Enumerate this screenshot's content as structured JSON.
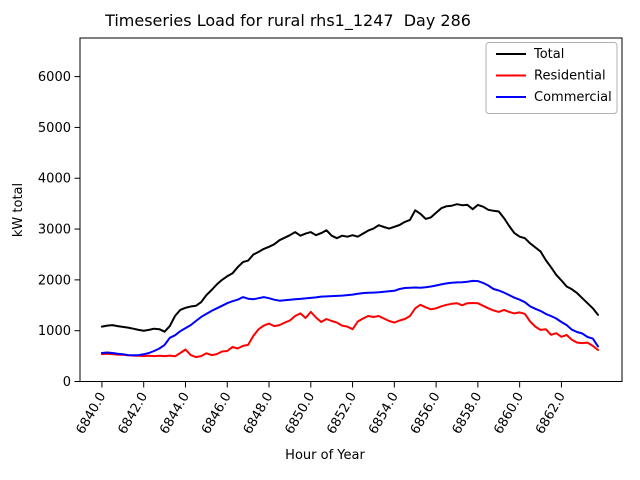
{
  "chart_data": {
    "type": "line",
    "title": "Timeseries Load for rural rhs1_1247  Day 286",
    "xlabel": "Hour of Year",
    "ylabel": "kW total",
    "grid": false,
    "xlim": [
      6838.95,
      6864.9
    ],
    "ylim": [
      0,
      6760
    ],
    "x_ticks": [
      {
        "value": 6840,
        "label": "6840.0"
      },
      {
        "value": 6842,
        "label": "6842.0"
      },
      {
        "value": 6844,
        "label": "6844.0"
      },
      {
        "value": 6846,
        "label": "6846.0"
      },
      {
        "value": 6848,
        "label": "6848.0"
      },
      {
        "value": 6850,
        "label": "6850.0"
      },
      {
        "value": 6852,
        "label": "6852.0"
      },
      {
        "value": 6854,
        "label": "6854.0"
      },
      {
        "value": 6856,
        "label": "6856.0"
      },
      {
        "value": 6858,
        "label": "6858.0"
      },
      {
        "value": 6860,
        "label": "6860.0"
      },
      {
        "value": 6862,
        "label": "6862.0"
      }
    ],
    "x_tick_rotation_deg": 60,
    "y_ticks": [
      {
        "value": 0,
        "label": "0"
      },
      {
        "value": 1000,
        "label": "1000"
      },
      {
        "value": 2000,
        "label": "2000"
      },
      {
        "value": 3000,
        "label": "3000"
      },
      {
        "value": 4000,
        "label": "4000"
      },
      {
        "value": 5000,
        "label": "5000"
      },
      {
        "value": 6000,
        "label": "6000"
      }
    ],
    "legend": {
      "position": "upper right",
      "entries": [
        "Total",
        "Residential",
        "Commercial"
      ]
    },
    "x_start": 6840.0,
    "x_step": 0.25,
    "x": [
      6840.0,
      6840.25,
      6840.5,
      6840.75,
      6841.0,
      6841.25,
      6841.5,
      6841.75,
      6842.0,
      6842.25,
      6842.5,
      6842.75,
      6843.0,
      6843.25,
      6843.5,
      6843.75,
      6844.0,
      6844.25,
      6844.5,
      6844.75,
      6845.0,
      6845.25,
      6845.5,
      6845.75,
      6846.0,
      6846.25,
      6846.5,
      6846.75,
      6847.0,
      6847.25,
      6847.5,
      6847.75,
      6848.0,
      6848.25,
      6848.5,
      6848.75,
      6849.0,
      6849.25,
      6849.5,
      6849.75,
      6850.0,
      6850.25,
      6850.5,
      6850.75,
      6851.0,
      6851.25,
      6851.5,
      6851.75,
      6852.0,
      6852.25,
      6852.5,
      6852.75,
      6853.0,
      6853.25,
      6853.5,
      6853.75,
      6854.0,
      6854.25,
      6854.5,
      6854.75,
      6855.0,
      6855.25,
      6855.5,
      6855.75,
      6856.0,
      6856.25,
      6856.5,
      6856.75,
      6857.0,
      6857.25,
      6857.5,
      6857.75,
      6858.0,
      6858.25,
      6858.5,
      6858.75,
      6859.0,
      6859.25,
      6859.5,
      6859.75,
      6860.0,
      6860.25,
      6860.5,
      6860.75,
      6861.0,
      6861.25,
      6861.5,
      6861.75,
      6862.0,
      6862.25,
      6862.5,
      6862.75,
      6863.0,
      6863.25,
      6863.5,
      6863.75
    ],
    "series": [
      {
        "name": "Total",
        "color": "#000000",
        "values": [
          1080,
          1100,
          1110,
          1090,
          1075,
          1060,
          1040,
          1015,
          1000,
          1015,
          1040,
          1030,
          980,
          1090,
          1290,
          1410,
          1450,
          1475,
          1490,
          1560,
          1700,
          1800,
          1910,
          2000,
          2070,
          2130,
          2250,
          2350,
          2380,
          2500,
          2550,
          2610,
          2650,
          2700,
          2780,
          2830,
          2880,
          2940,
          2870,
          2910,
          2940,
          2880,
          2920,
          2975,
          2870,
          2820,
          2870,
          2850,
          2880,
          2850,
          2910,
          2970,
          3010,
          3075,
          3040,
          3010,
          3045,
          3080,
          3140,
          3180,
          3370,
          3300,
          3200,
          3230,
          3320,
          3410,
          3450,
          3460,
          3490,
          3470,
          3475,
          3390,
          3475,
          3440,
          3380,
          3360,
          3345,
          3215,
          3060,
          2920,
          2850,
          2820,
          2720,
          2640,
          2560,
          2390,
          2250,
          2100,
          1990,
          1870,
          1815,
          1740,
          1640,
          1540,
          1440,
          1310
        ]
      },
      {
        "name": "Residential",
        "color": "#ff0000",
        "values": [
          540,
          545,
          540,
          530,
          525,
          515,
          510,
          505,
          500,
          505,
          500,
          505,
          500,
          510,
          495,
          560,
          630,
          520,
          480,
          500,
          555,
          520,
          540,
          590,
          600,
          680,
          650,
          700,
          720,
          900,
          1030,
          1100,
          1140,
          1090,
          1110,
          1160,
          1200,
          1290,
          1340,
          1250,
          1370,
          1260,
          1170,
          1230,
          1190,
          1160,
          1100,
          1080,
          1030,
          1180,
          1240,
          1290,
          1270,
          1290,
          1240,
          1190,
          1160,
          1200,
          1230,
          1290,
          1440,
          1510,
          1460,
          1420,
          1440,
          1480,
          1510,
          1530,
          1540,
          1500,
          1540,
          1545,
          1540,
          1490,
          1440,
          1400,
          1370,
          1410,
          1370,
          1340,
          1360,
          1330,
          1180,
          1080,
          1015,
          1030,
          920,
          950,
          880,
          915,
          820,
          765,
          755,
          765,
          700,
          620
        ]
      },
      {
        "name": "Commercial",
        "color": "#0000ff",
        "values": [
          560,
          570,
          560,
          545,
          535,
          520,
          515,
          520,
          535,
          560,
          600,
          650,
          720,
          860,
          910,
          990,
          1050,
          1110,
          1190,
          1270,
          1330,
          1390,
          1440,
          1490,
          1540,
          1580,
          1610,
          1660,
          1630,
          1620,
          1640,
          1660,
          1640,
          1610,
          1590,
          1600,
          1610,
          1620,
          1625,
          1635,
          1645,
          1655,
          1670,
          1675,
          1680,
          1685,
          1690,
          1700,
          1710,
          1725,
          1740,
          1745,
          1750,
          1755,
          1765,
          1775,
          1785,
          1820,
          1840,
          1845,
          1850,
          1845,
          1855,
          1870,
          1890,
          1910,
          1930,
          1945,
          1950,
          1955,
          1965,
          1980,
          1975,
          1940,
          1890,
          1820,
          1790,
          1750,
          1700,
          1650,
          1610,
          1560,
          1480,
          1430,
          1390,
          1330,
          1290,
          1240,
          1170,
          1110,
          1020,
          975,
          945,
          875,
          845,
          690
        ]
      }
    ]
  }
}
